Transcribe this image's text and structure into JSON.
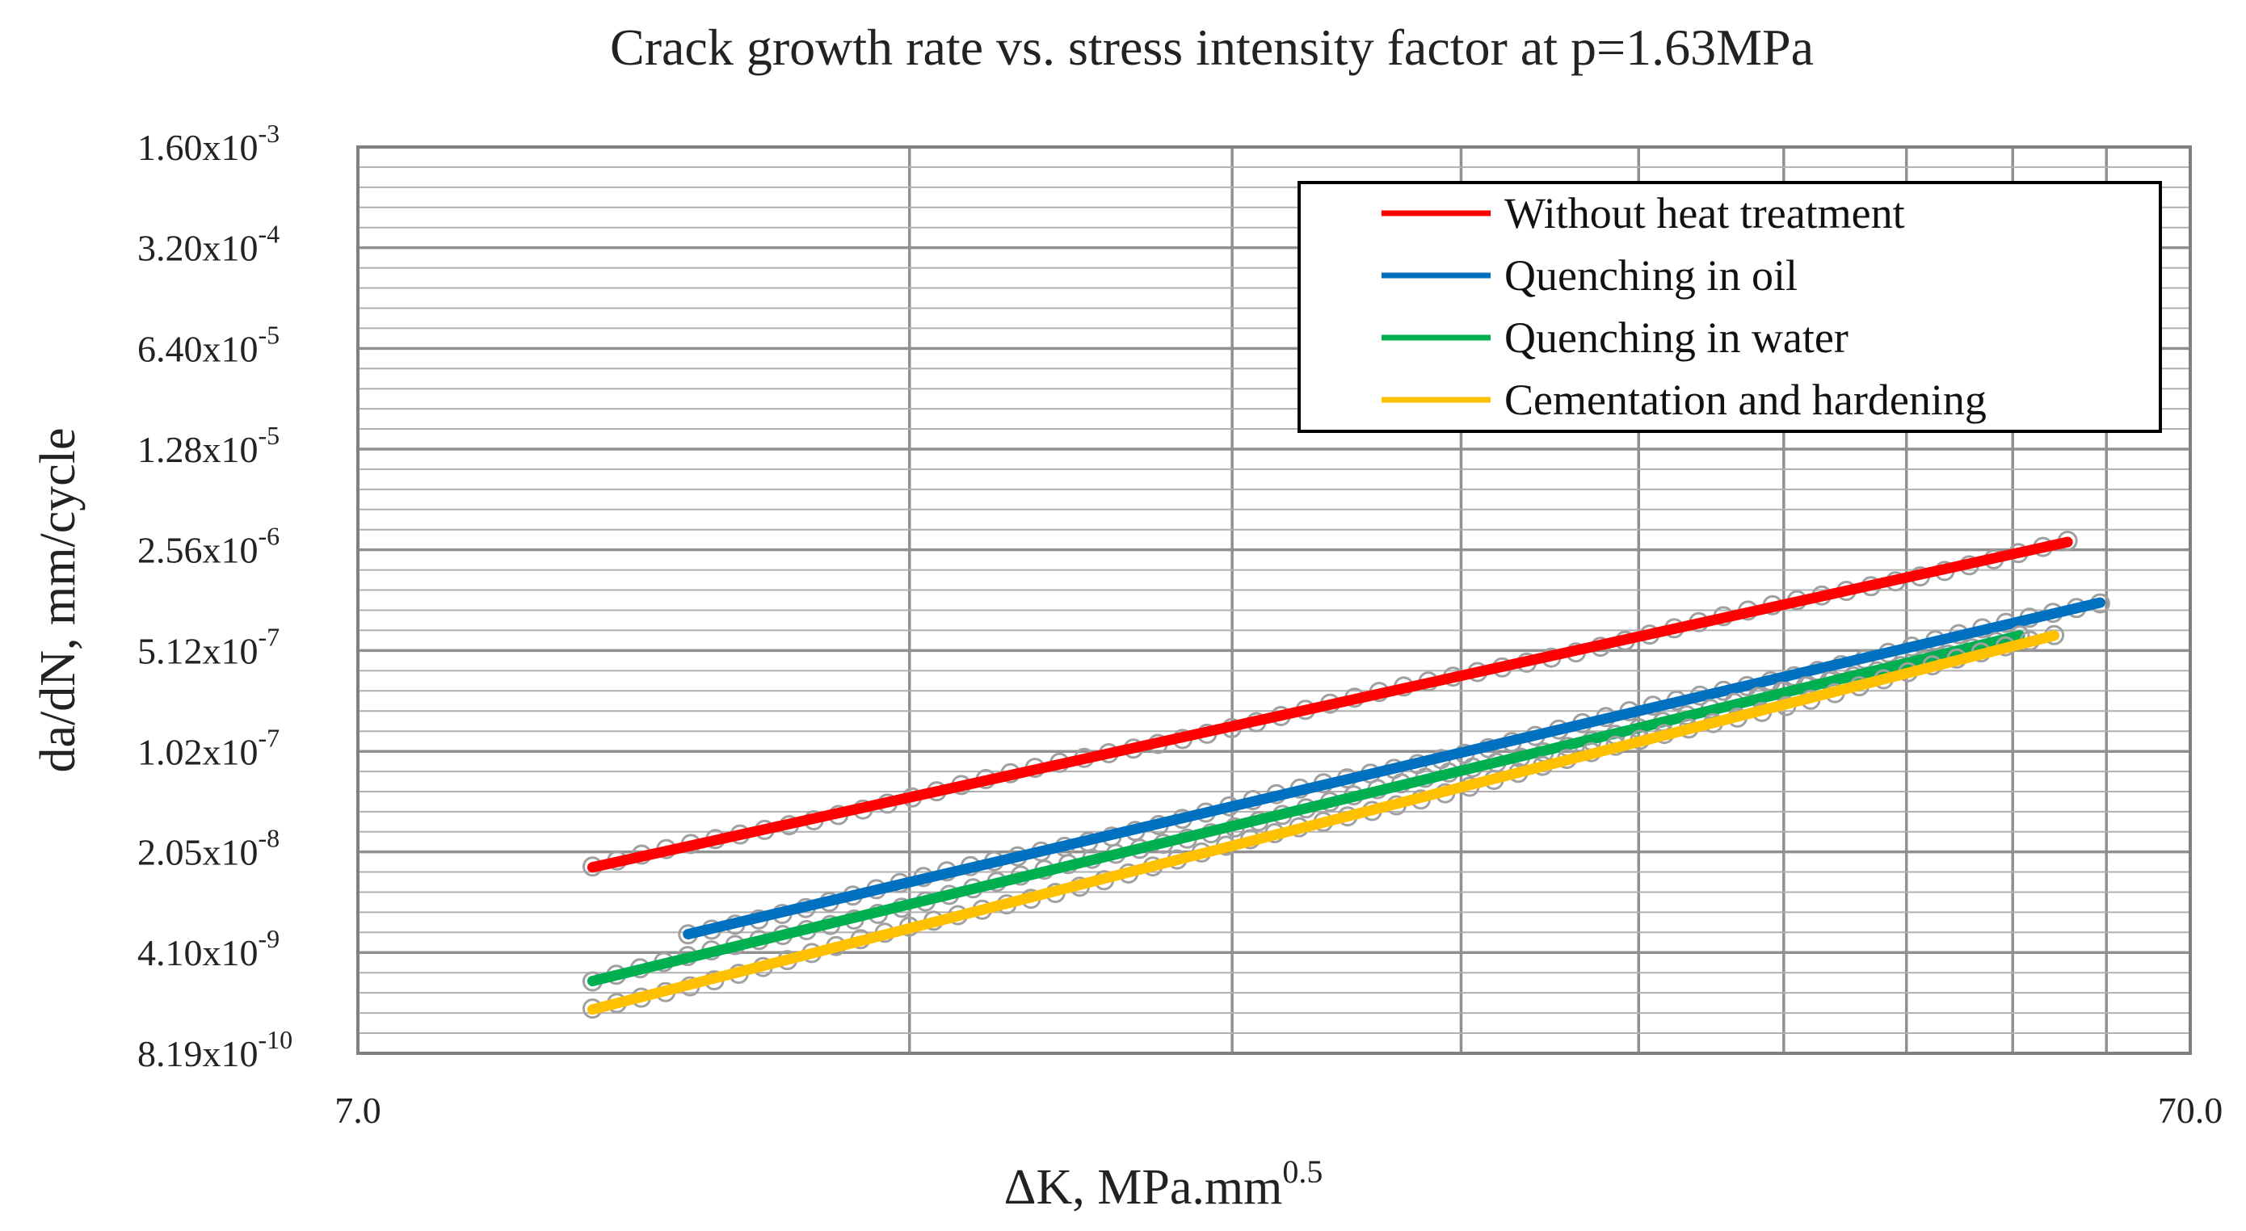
{
  "chart_data": {
    "type": "scatter",
    "title": "Crack growth rate vs. stress intensity factor at p=1.63MPa",
    "xlabel": {
      "main": "ΔK, MPa.mm",
      "sup": "0.5"
    },
    "ylabel": "da/dN, mm/cycle",
    "xscale": "log",
    "yscale": "log",
    "xlim": [
      7.0,
      70.0
    ],
    "ylim": [
      8.19e-10,
      0.0016
    ],
    "x_tick_labels": [
      "7.0",
      "70.0"
    ],
    "y_ticks": [
      {
        "value": 0.0016,
        "mantissa": "1.60x10",
        "exp": "-3"
      },
      {
        "value": 0.00032,
        "mantissa": "3.20x10",
        "exp": "-4"
      },
      {
        "value": 6.4e-05,
        "mantissa": "6.40x10",
        "exp": "-5"
      },
      {
        "value": 1.28e-05,
        "mantissa": "1.28x10",
        "exp": "-5"
      },
      {
        "value": 2.56e-06,
        "mantissa": "2.56x10",
        "exp": "-6"
      },
      {
        "value": 5.12e-07,
        "mantissa": "5.12x10",
        "exp": "-7"
      },
      {
        "value": 1.02e-07,
        "mantissa": "1.02x10",
        "exp": "-7"
      },
      {
        "value": 2.05e-08,
        "mantissa": "2.05x10",
        "exp": "-8"
      },
      {
        "value": 4.1e-09,
        "mantissa": "4.10x10",
        "exp": "-9"
      },
      {
        "value": 8.19e-10,
        "mantissa": "8.19x10",
        "exp": "-10"
      }
    ],
    "grid": true,
    "legend_position": "top-right",
    "marker_color": "#a0a0a0",
    "series": [
      {
        "name": "Without heat treatment",
        "color": "#ff0000",
        "x_start": 9.4,
        "x_end": 60.0,
        "y_start": 1.6e-08,
        "y_end": 2.9e-06
      },
      {
        "name": "Quenching in oil",
        "color": "#0070c0",
        "x_start": 10.6,
        "x_end": 62.5,
        "y_start": 5.5e-09,
        "y_end": 1.1e-06
      },
      {
        "name": "Quenching in water",
        "color": "#00b050",
        "x_start": 9.4,
        "x_end": 56.5,
        "y_start": 2.6e-09,
        "y_end": 6.5e-07
      },
      {
        "name": "Cementation and hardening",
        "color": "#ffc000",
        "x_start": 9.4,
        "x_end": 59.0,
        "y_start": 1.65e-09,
        "y_end": 6.5e-07
      }
    ]
  }
}
